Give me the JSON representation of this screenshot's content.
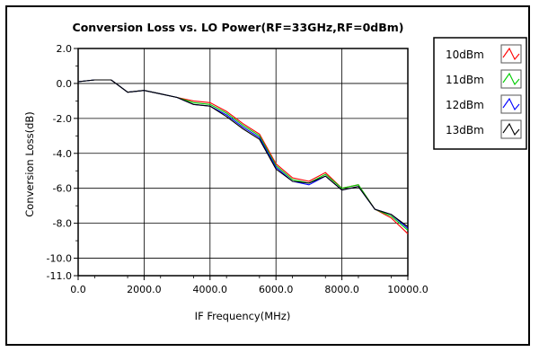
{
  "chart_data": {
    "type": "line",
    "title": "Conversion Loss vs. LO Power(RF=33GHz,RF=0dBm)",
    "xlabel": "IF Frequency(MHz)",
    "ylabel": "Conversion Loss(dB)",
    "xlim": [
      0,
      10000
    ],
    "ylim": [
      -11,
      2
    ],
    "x_ticks": [
      0,
      2000,
      4000,
      6000,
      8000,
      10000
    ],
    "x_tick_labels": [
      "0.0",
      "2000.0",
      "4000.0",
      "6000.0",
      "8000.0",
      "10000.0"
    ],
    "y_ticks": [
      2,
      0,
      -2,
      -4,
      -6,
      -8,
      -10,
      -11
    ],
    "y_tick_labels": [
      "2.0",
      "0.0",
      "-2.0",
      "-4.0",
      "-6.0",
      "-8.0",
      "-10.0",
      "-11.0"
    ],
    "grid": true,
    "legend_position": "right",
    "series": [
      {
        "name": "10dBm",
        "color": "#ff0000",
        "x": [
          0,
          500,
          1000,
          1500,
          2000,
          2500,
          3000,
          3500,
          4000,
          4500,
          5000,
          5500,
          6000,
          6500,
          7000,
          7500,
          8000,
          8500,
          9000,
          9500,
          10000
        ],
        "y": [
          0.1,
          0.2,
          0.2,
          -0.5,
          -0.4,
          -0.6,
          -0.8,
          -1.0,
          -1.1,
          -1.6,
          -2.3,
          -2.9,
          -4.6,
          -5.4,
          -5.6,
          -5.1,
          -6.0,
          -5.8,
          -7.2,
          -7.7,
          -8.6
        ]
      },
      {
        "name": "11dBm",
        "color": "#00cc00",
        "x": [
          0,
          500,
          1000,
          1500,
          2000,
          2500,
          3000,
          3500,
          4000,
          4500,
          5000,
          5500,
          6000,
          6500,
          7000,
          7500,
          8000,
          8500,
          9000,
          9500,
          10000
        ],
        "y": [
          0.1,
          0.2,
          0.2,
          -0.5,
          -0.4,
          -0.6,
          -0.8,
          -1.1,
          -1.2,
          -1.7,
          -2.4,
          -3.0,
          -4.7,
          -5.5,
          -5.7,
          -5.2,
          -6.0,
          -5.8,
          -7.2,
          -7.6,
          -8.4
        ]
      },
      {
        "name": "12dBm",
        "color": "#0000ff",
        "x": [
          0,
          500,
          1000,
          1500,
          2000,
          2500,
          3000,
          3500,
          4000,
          4500,
          5000,
          5500,
          6000,
          6500,
          7000,
          7500,
          8000,
          8500,
          9000,
          9500,
          10000
        ],
        "y": [
          0.1,
          0.2,
          0.2,
          -0.5,
          -0.4,
          -0.6,
          -0.8,
          -1.2,
          -1.3,
          -1.8,
          -2.5,
          -3.1,
          -4.8,
          -5.6,
          -5.8,
          -5.3,
          -6.1,
          -5.9,
          -7.2,
          -7.5,
          -8.3
        ]
      },
      {
        "name": "13dBm",
        "color": "#000000",
        "x": [
          0,
          500,
          1000,
          1500,
          2000,
          2500,
          3000,
          3500,
          4000,
          4500,
          5000,
          5500,
          6000,
          6500,
          7000,
          7500,
          8000,
          8500,
          9000,
          9500,
          10000
        ],
        "y": [
          0.1,
          0.2,
          0.2,
          -0.5,
          -0.4,
          -0.6,
          -0.8,
          -1.2,
          -1.3,
          -1.9,
          -2.6,
          -3.2,
          -4.9,
          -5.6,
          -5.7,
          -5.3,
          -6.1,
          -5.9,
          -7.2,
          -7.5,
          -8.2
        ]
      }
    ]
  }
}
